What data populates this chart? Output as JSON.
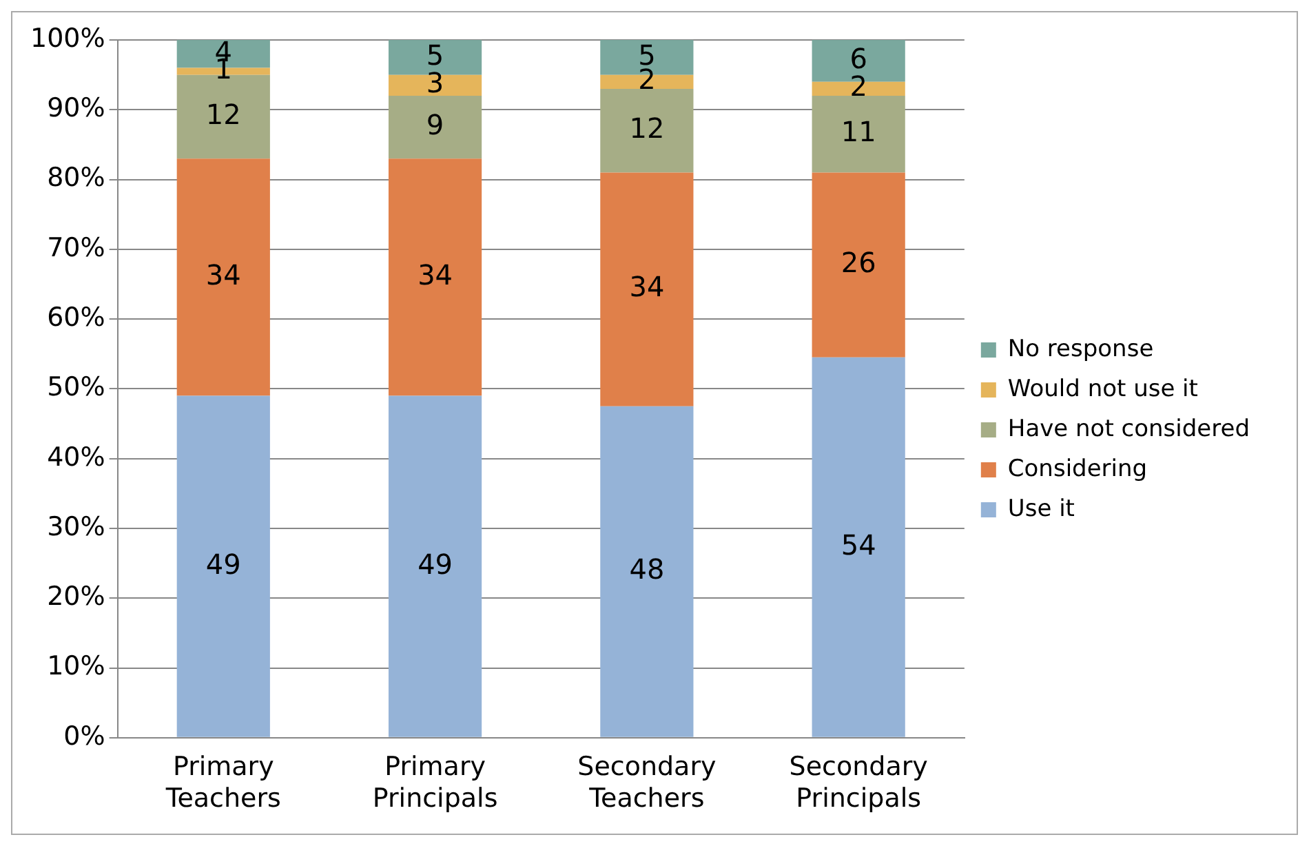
{
  "chart_data": {
    "type": "bar",
    "stacked": true,
    "categories": [
      "Primary Teachers",
      "Primary Principals",
      "Secondary Teachers",
      "Secondary Principals"
    ],
    "series": [
      {
        "name": "Use it",
        "color": "#95b3d7",
        "values": [
          49,
          49,
          47.5,
          54.5
        ],
        "value_labels": [
          "49",
          "49",
          "48",
          "54"
        ]
      },
      {
        "name": "Considering",
        "color": "#e0804a",
        "values": [
          34,
          34,
          33.5,
          26.5
        ],
        "value_labels": [
          "34",
          "34",
          "34",
          "26"
        ]
      },
      {
        "name": "Have not considered",
        "color": "#a6ad86",
        "values": [
          12,
          9,
          12,
          11
        ],
        "value_labels": [
          "12",
          "9",
          "12",
          "11"
        ]
      },
      {
        "name": "Would not use it",
        "color": "#e5b55b",
        "values": [
          1,
          3,
          2,
          2
        ],
        "value_labels": [
          "1",
          "3",
          "2",
          "2"
        ]
      },
      {
        "name": "No response",
        "color": "#7aa89e",
        "values": [
          4,
          5,
          5,
          6
        ],
        "value_labels": [
          "4",
          "5",
          "5",
          "6"
        ]
      }
    ],
    "ylim": [
      0,
      100
    ],
    "yticks": [
      {
        "value": 0,
        "label": "0%"
      },
      {
        "value": 10,
        "label": "10%"
      },
      {
        "value": 20,
        "label": "20%"
      },
      {
        "value": 30,
        "label": "30%"
      },
      {
        "value": 40,
        "label": "40%"
      },
      {
        "value": 50,
        "label": "50%"
      },
      {
        "value": 60,
        "label": "60%"
      },
      {
        "value": 70,
        "label": "70%"
      },
      {
        "value": 80,
        "label": "80%"
      },
      {
        "value": 90,
        "label": "90%"
      },
      {
        "value": 100,
        "label": "100%"
      }
    ],
    "grid": "y",
    "legend": "right"
  }
}
